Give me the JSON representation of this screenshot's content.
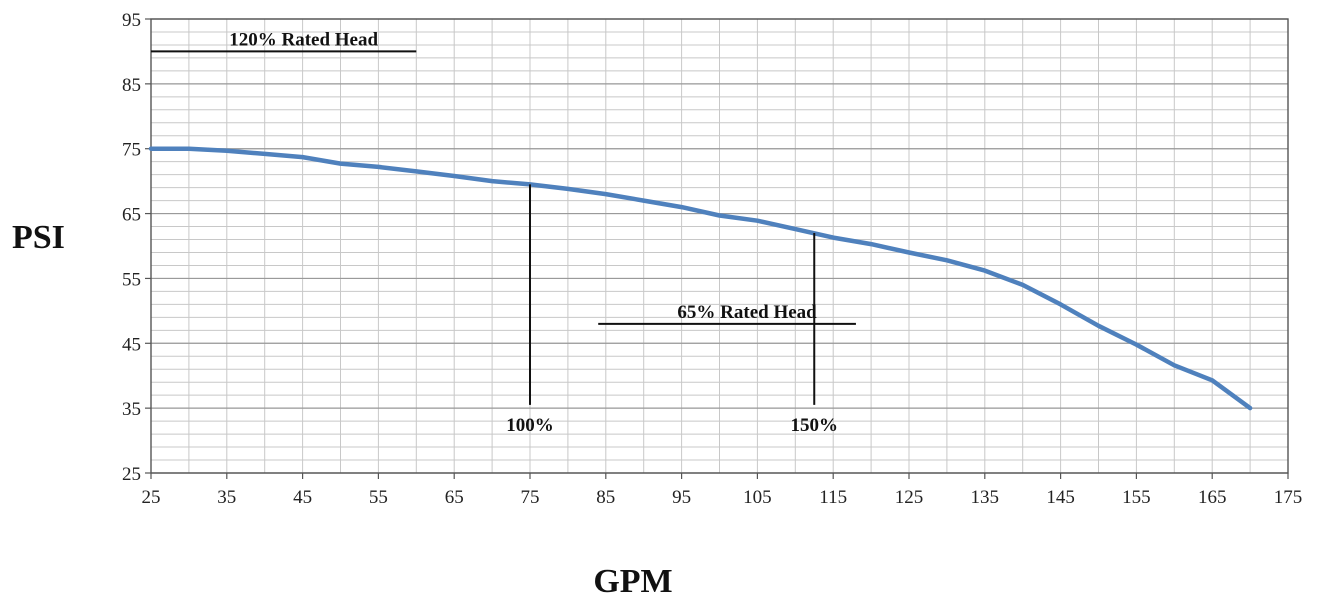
{
  "chart_data": {
    "type": "line",
    "title": "",
    "xlabel": "GPM",
    "ylabel": "PSI",
    "xlim": [
      25,
      175
    ],
    "ylim": [
      25,
      95
    ],
    "x_ticks": [
      25,
      35,
      45,
      55,
      65,
      75,
      85,
      95,
      105,
      115,
      125,
      135,
      145,
      155,
      165,
      175
    ],
    "y_ticks": [
      25,
      35,
      45,
      55,
      65,
      75,
      85,
      95
    ],
    "x_minor_step": 5,
    "y_minor_step": 2,
    "grid": true,
    "line_color": "#4f81bd",
    "series": [
      {
        "x": [
          25,
          30,
          35,
          40,
          45,
          50,
          55,
          60,
          65,
          70,
          75,
          80,
          85,
          90,
          95,
          100,
          105,
          110,
          115,
          120,
          125,
          130,
          135,
          140,
          145,
          150,
          155,
          160,
          165,
          170
        ],
        "y": [
          75,
          75,
          74.7,
          74.2,
          73.7,
          72.7,
          72.2,
          71.5,
          70.8,
          70,
          69.5,
          68.8,
          68,
          67,
          66,
          64.7,
          63.9,
          62.6,
          61.3,
          60.3,
          59,
          57.8,
          56.2,
          54,
          51,
          47.7,
          44.8,
          41.6,
          39.3,
          35
        ]
      }
    ],
    "annotations": [
      {
        "text": "120% Rated Head",
        "hline_y": 90,
        "x_from": 25,
        "x_to": 60
      },
      {
        "text": "65% Rated Head",
        "hline_y": 48,
        "x_from": 84,
        "x_to": 118
      },
      {
        "text": "100%",
        "vline_x": 75,
        "y_from": 35.5,
        "y_to": 69.5
      },
      {
        "text": "150%",
        "vline_x": 112.5,
        "y_from": 35.5,
        "y_to": 62
      }
    ]
  }
}
